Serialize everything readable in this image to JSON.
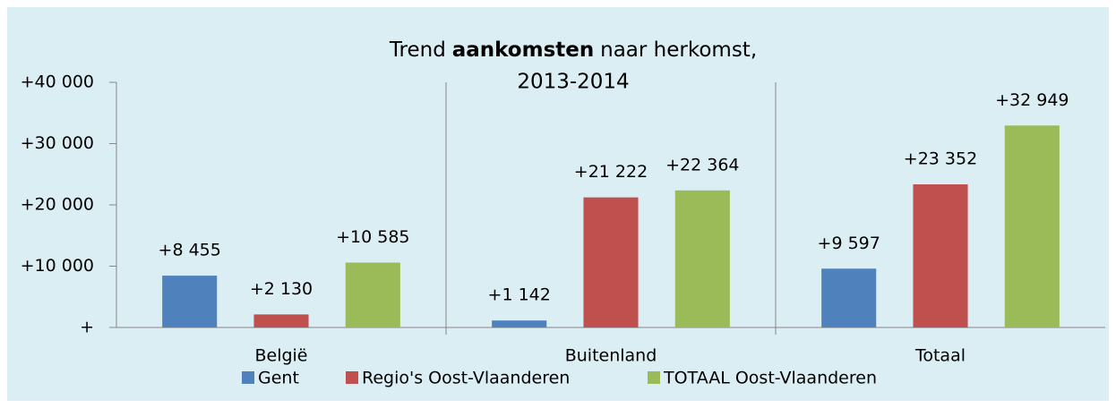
{
  "chart_data": {
    "type": "bar",
    "title": [
      "Trend",
      "aankomsten",
      "naar herkomst,",
      "2013-2014"
    ],
    "categories": [
      "België",
      "Buitenland",
      "Totaal"
    ],
    "series": [
      {
        "name": "Gent",
        "color": "#4f81bd",
        "values": [
          8455,
          1142,
          9597
        ],
        "value_labels": [
          "+8 455",
          "+1 142",
          "+9 597"
        ]
      },
      {
        "name": "Regio's Oost-Vlaanderen",
        "color": "#c0504d",
        "values": [
          2130,
          21222,
          23352
        ],
        "value_labels": [
          "+2 130",
          "+21 222",
          "+23 352"
        ]
      },
      {
        "name": "TOTAAL Oost-Vlaanderen",
        "color": "#9bbb59",
        "values": [
          10585,
          22364,
          32949
        ],
        "value_labels": [
          "+10 585",
          "+22 364",
          "+32 949"
        ]
      }
    ],
    "ylim": [
      0,
      40000
    ],
    "yticks": [
      {
        "value": 0,
        "label": "+"
      },
      {
        "value": 10000,
        "label": "+10 000"
      },
      {
        "value": 20000,
        "label": "+20 000"
      },
      {
        "value": 30000,
        "label": "+30 000"
      },
      {
        "value": 40000,
        "label": "+40 000"
      }
    ],
    "legend": "bottom"
  }
}
